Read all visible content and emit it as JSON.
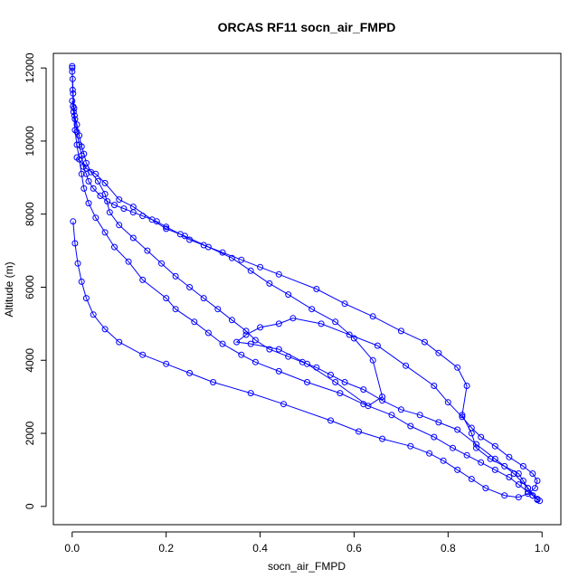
{
  "chart_data": {
    "type": "scatter",
    "title": "ORCAS RF11 socn_air_FMPD",
    "xlabel": "socn_air_FMPD",
    "ylabel": "Altitude (m)",
    "xlim": [
      -0.04,
      1.04
    ],
    "ylim": [
      -500,
      12400
    ],
    "xticks": [
      "0.0",
      "0.2",
      "0.4",
      "0.6",
      "0.8",
      "1.0"
    ],
    "yticks": [
      "0",
      "2000",
      "4000",
      "6000",
      "8000",
      "10000",
      "12000"
    ],
    "grid": false,
    "marker": "open-circle",
    "line_connected": true,
    "series_color": "#0000ff",
    "series": [
      {
        "x": [
          0.0,
          0.0,
          0.001,
          0.002,
          0.004,
          0.006,
          0.01,
          0.015,
          0.02,
          0.024,
          0.03,
          0.035,
          0.045,
          0.06,
          0.075,
          0.09,
          0.11,
          0.13,
          0.15,
          0.18,
          0.2,
          0.23,
          0.25,
          0.28,
          0.32,
          0.36,
          0.4,
          0.44,
          0.52,
          0.58,
          0.64,
          0.7,
          0.75,
          0.78,
          0.82,
          0.84,
          0.83,
          0.85,
          0.86,
          0.89,
          0.92,
          0.95,
          0.96,
          0.97,
          0.98,
          0.99,
          0.995,
          0.99,
          0.98,
          0.97,
          0.95,
          0.93,
          0.9,
          0.87,
          0.84,
          0.81,
          0.77,
          0.72,
          0.68,
          0.62,
          0.57,
          0.5,
          0.44,
          0.39,
          0.36,
          0.32,
          0.29,
          0.26,
          0.22,
          0.2,
          0.15,
          0.12,
          0.09,
          0.07,
          0.05,
          0.035,
          0.025,
          0.02,
          0.015,
          0.01,
          0.006,
          0.003,
          0.001,
          0.0
        ],
        "y": [
          12050,
          11900,
          11700,
          11300,
          10900,
          10600,
          10250,
          9900,
          9600,
          9300,
          9100,
          8900,
          8700,
          8500,
          8350,
          8250,
          8150,
          8050,
          7950,
          7800,
          7650,
          7450,
          7300,
          7150,
          6950,
          6750,
          6550,
          6350,
          5950,
          5550,
          5200,
          4800,
          4500,
          4200,
          3800,
          3300,
          2500,
          2000,
          1600,
          1300,
          1100,
          900,
          700,
          500,
          300,
          180,
          150,
          200,
          300,
          400,
          600,
          800,
          1000,
          1200,
          1400,
          1600,
          1900,
          2200,
          2500,
          2800,
          3100,
          3400,
          3700,
          3950,
          4150,
          4450,
          4750,
          5050,
          5400,
          5700,
          6200,
          6700,
          7100,
          7500,
          7900,
          8300,
          8700,
          9100,
          9500,
          9900,
          10300,
          10800,
          11400,
          12000
        ]
      },
      {
        "x": [
          0.01,
          0.03,
          0.05,
          0.07,
          0.1,
          0.13,
          0.17,
          0.2,
          0.24,
          0.29,
          0.34,
          0.38,
          0.42,
          0.46,
          0.51,
          0.56,
          0.6,
          0.64,
          0.66,
          0.63,
          0.56,
          0.5,
          0.44,
          0.38,
          0.35,
          0.37,
          0.4,
          0.44,
          0.47,
          0.53,
          0.59,
          0.65,
          0.71,
          0.77,
          0.8,
          0.83,
          0.85,
          0.87,
          0.9,
          0.93,
          0.96,
          0.98,
          0.99,
          0.985,
          0.97,
          0.95,
          0.92,
          0.88,
          0.85,
          0.82,
          0.79,
          0.76,
          0.72,
          0.66,
          0.61,
          0.55,
          0.45,
          0.38,
          0.3,
          0.25,
          0.2,
          0.15,
          0.1,
          0.07,
          0.045,
          0.03,
          0.02,
          0.012,
          0.006,
          0.002
        ],
        "y": [
          9550,
          9250,
          9100,
          8850,
          8400,
          8200,
          7850,
          7600,
          7400,
          7100,
          6800,
          6450,
          6100,
          5800,
          5400,
          5050,
          4600,
          4000,
          3000,
          2750,
          3400,
          3900,
          4300,
          4450,
          4500,
          4700,
          4900,
          5000,
          5150,
          5000,
          4700,
          4400,
          3850,
          3300,
          2850,
          2450,
          2150,
          1900,
          1650,
          1350,
          1100,
          900,
          700,
          500,
          350,
          250,
          300,
          500,
          750,
          1000,
          1250,
          1450,
          1650,
          1850,
          2050,
          2350,
          2800,
          3100,
          3400,
          3650,
          3900,
          4150,
          4500,
          4850,
          5250,
          5700,
          6150,
          6650,
          7200,
          7800
        ]
      },
      {
        "x": [
          0.0,
          0.002,
          0.005,
          0.01,
          0.015,
          0.02,
          0.025,
          0.03,
          0.04,
          0.055,
          0.07,
          0.08,
          0.1,
          0.13,
          0.16,
          0.19,
          0.22,
          0.25,
          0.28,
          0.31,
          0.34,
          0.37,
          0.39,
          0.42,
          0.46,
          0.49,
          0.52,
          0.55,
          0.58,
          0.62,
          0.66,
          0.7,
          0.74,
          0.78,
          0.82,
          0.86,
          0.9,
          0.94,
          0.97,
          0.99
        ],
        "y": [
          11100,
          10950,
          10700,
          10450,
          10150,
          9850,
          9650,
          9400,
          9150,
          8900,
          8550,
          8050,
          7700,
          7350,
          7000,
          6650,
          6300,
          6000,
          5700,
          5400,
          5100,
          4800,
          4550,
          4300,
          4100,
          3950,
          3800,
          3600,
          3400,
          3200,
          2900,
          2650,
          2500,
          2300,
          2100,
          1700,
          1300,
          900,
          500,
          200
        ]
      }
    ]
  }
}
